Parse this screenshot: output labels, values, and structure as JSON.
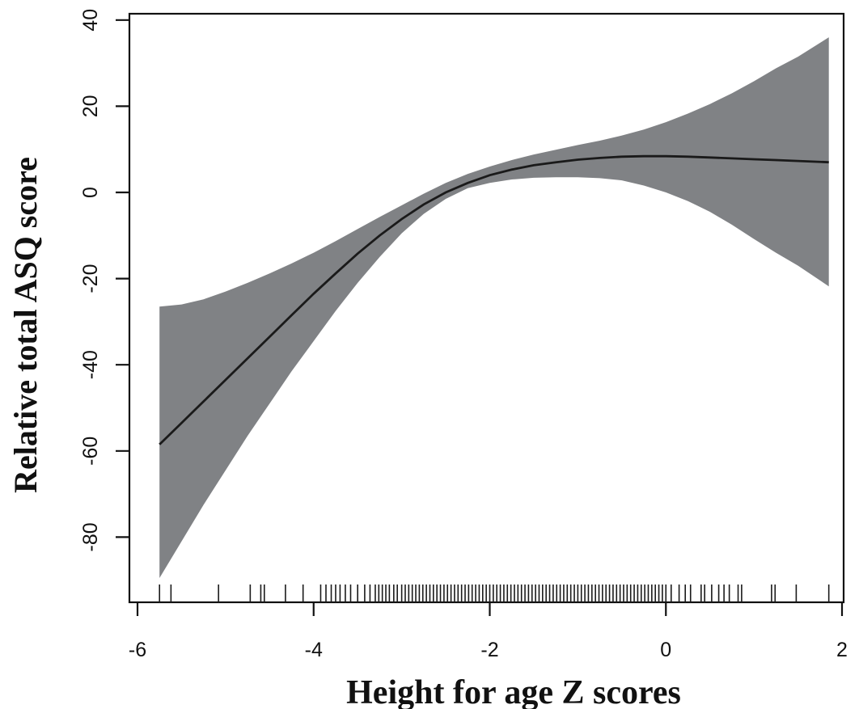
{
  "chart_data": {
    "type": "line",
    "title": "",
    "xlabel": "Height for age Z scores",
    "ylabel": "Relative total ASQ score",
    "xlim": [
      -6,
      2
    ],
    "ylim": [
      -93,
      42
    ],
    "x_ticks": [
      -6,
      -4,
      -2,
      0,
      2
    ],
    "x_tick_labels": [
      "-6",
      "-4",
      "-2",
      "0",
      "2"
    ],
    "y_ticks": [
      -80,
      -60,
      -40,
      -20,
      0,
      20,
      40
    ],
    "y_tick_labels": [
      "-80",
      "-60",
      "-40",
      "-20",
      "0",
      "20",
      "40"
    ],
    "grid": false,
    "legend": "none",
    "series": [
      {
        "x": [
          -5.75,
          -5.5,
          -5.25,
          -5.0,
          -4.75,
          -4.5,
          -4.25,
          -4.0,
          -3.75,
          -3.5,
          -3.25,
          -3.0,
          -2.75,
          -2.5,
          -2.25,
          -2.0,
          -1.75,
          -1.5,
          -1.25,
          -1.0,
          -0.75,
          -0.5,
          -0.25,
          0.0,
          0.25,
          0.5,
          0.75,
          1.0,
          1.25,
          1.5,
          1.85
        ],
        "y": [
          -58.5,
          -53.5,
          -48.5,
          -43.5,
          -38.5,
          -33.5,
          -28.5,
          -23.5,
          -18.8,
          -14.2,
          -10.0,
          -6.2,
          -2.8,
          0.0,
          2.2,
          4.0,
          5.3,
          6.3,
          7.0,
          7.6,
          8.0,
          8.3,
          8.4,
          8.4,
          8.3,
          8.1,
          7.9,
          7.7,
          7.5,
          7.3,
          7.0
        ]
      }
    ],
    "confidence_band": {
      "x": [
        -5.75,
        -5.5,
        -5.25,
        -5.0,
        -4.75,
        -4.5,
        -4.25,
        -4.0,
        -3.75,
        -3.5,
        -3.25,
        -3.0,
        -2.75,
        -2.5,
        -2.25,
        -2.0,
        -1.75,
        -1.5,
        -1.25,
        -1.0,
        -0.75,
        -0.5,
        -0.25,
        0.0,
        0.25,
        0.5,
        0.75,
        1.0,
        1.25,
        1.5,
        1.85
      ],
      "upper": [
        -26.5,
        -26.0,
        -24.8,
        -23.0,
        -21.0,
        -18.8,
        -16.5,
        -14.0,
        -11.3,
        -8.5,
        -5.7,
        -3.0,
        -0.3,
        2.2,
        4.3,
        6.0,
        7.5,
        8.8,
        9.9,
        11.0,
        12.0,
        13.2,
        14.6,
        16.3,
        18.3,
        20.5,
        23.0,
        25.8,
        28.8,
        31.5,
        36.0
      ],
      "lower": [
        -89.5,
        -81.0,
        -72.5,
        -64.5,
        -56.5,
        -49.0,
        -41.5,
        -34.5,
        -27.5,
        -21.0,
        -15.0,
        -9.5,
        -5.0,
        -1.5,
        1.0,
        2.2,
        3.0,
        3.4,
        3.5,
        3.5,
        3.3,
        2.8,
        1.6,
        0.0,
        -2.0,
        -4.5,
        -7.5,
        -10.8,
        -14.0,
        -17.0,
        -21.8
      ]
    },
    "rug_x": [
      -5.75,
      -5.62,
      -5.08,
      -4.72,
      -4.6,
      -4.56,
      -4.32,
      -4.12,
      -3.92,
      -3.86,
      -3.8,
      -3.75,
      -3.7,
      -3.64,
      -3.58,
      -3.5,
      -3.42,
      -3.36,
      -3.3,
      -3.26,
      -3.22,
      -3.18,
      -3.14,
      -3.09,
      -3.05,
      -3.0,
      -2.96,
      -2.92,
      -2.88,
      -2.84,
      -2.8,
      -2.76,
      -2.72,
      -2.68,
      -2.64,
      -2.6,
      -2.56,
      -2.52,
      -2.48,
      -2.44,
      -2.4,
      -2.36,
      -2.32,
      -2.28,
      -2.24,
      -2.2,
      -2.16,
      -2.12,
      -2.08,
      -2.04,
      -2.0,
      -1.96,
      -1.92,
      -1.88,
      -1.84,
      -1.8,
      -1.76,
      -1.72,
      -1.68,
      -1.64,
      -1.6,
      -1.56,
      -1.52,
      -1.48,
      -1.44,
      -1.4,
      -1.36,
      -1.32,
      -1.28,
      -1.24,
      -1.2,
      -1.16,
      -1.12,
      -1.08,
      -1.04,
      -1.0,
      -0.96,
      -0.92,
      -0.88,
      -0.84,
      -0.8,
      -0.76,
      -0.72,
      -0.68,
      -0.64,
      -0.6,
      -0.56,
      -0.52,
      -0.48,
      -0.44,
      -0.4,
      -0.36,
      -0.32,
      -0.28,
      -0.24,
      -0.2,
      -0.16,
      -0.12,
      -0.08,
      -0.04,
      0.0,
      0.06,
      0.15,
      0.22,
      0.28,
      0.4,
      0.44,
      0.52,
      0.6,
      0.66,
      0.72,
      0.82,
      0.86,
      1.2,
      1.24,
      1.48,
      1.85
    ]
  },
  "colors": {
    "band": "#808285",
    "line": "#1a1a1a",
    "axis": "#111111",
    "rug": "#1a1a1a"
  }
}
